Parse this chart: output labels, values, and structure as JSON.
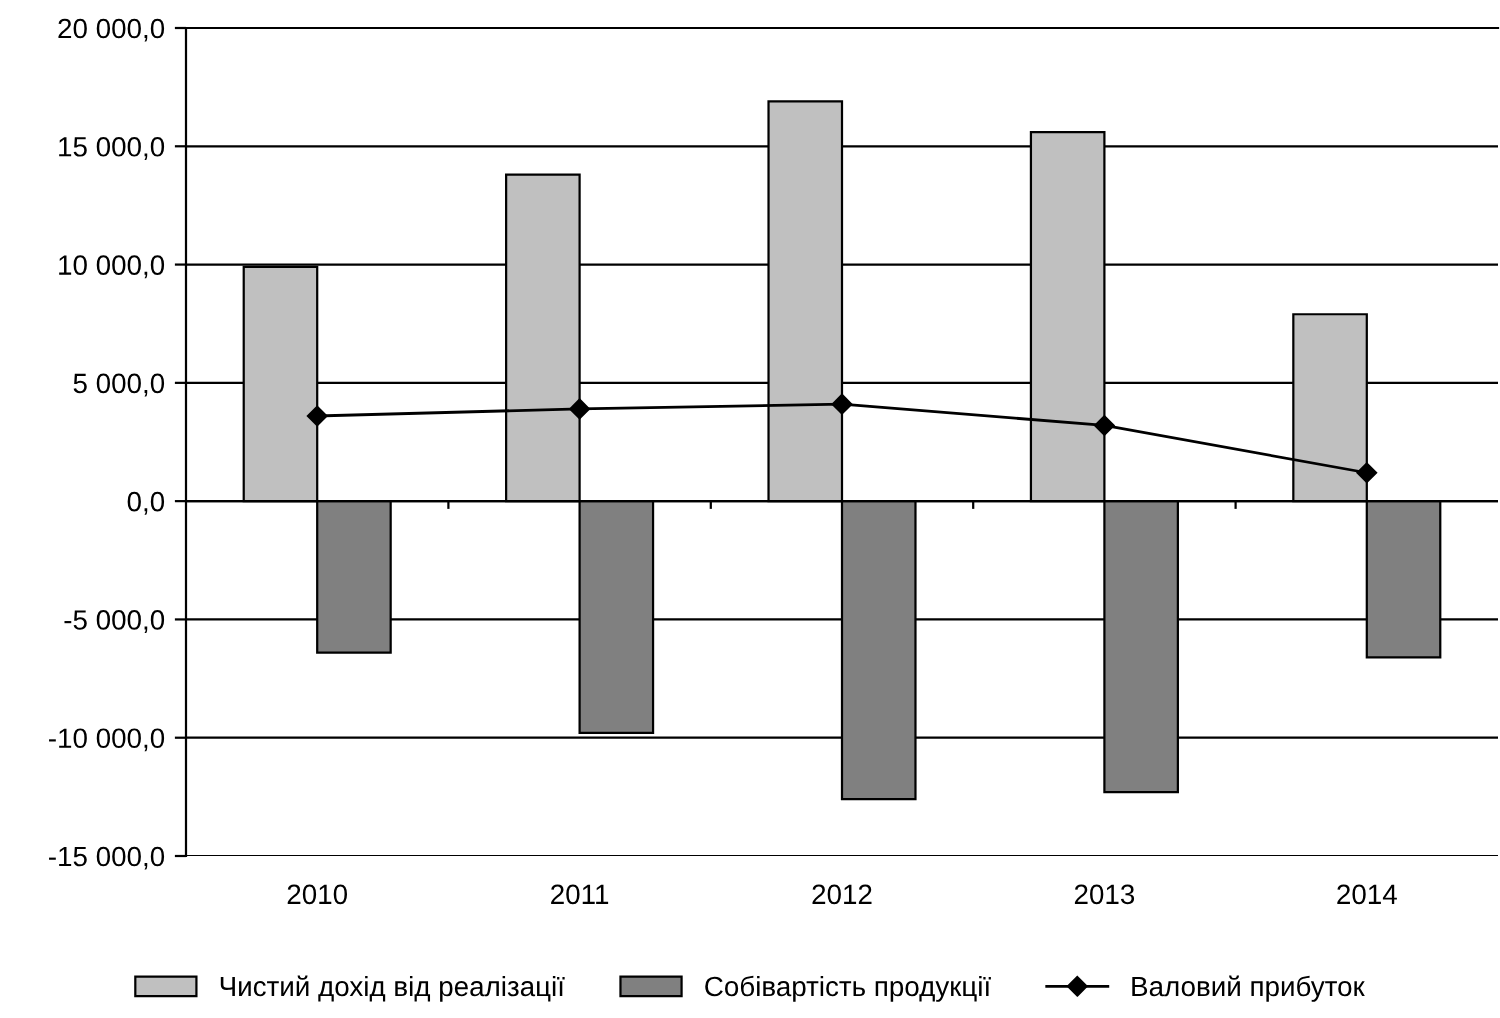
{
  "chart_data": {
    "type": "bar",
    "categories": [
      "2010",
      "2011",
      "2012",
      "2013",
      "2014"
    ],
    "series": [
      {
        "name": "Чистий дохід від реалізації",
        "color": "#c0c0c0",
        "values": [
          9900,
          13800,
          16900,
          15600,
          7900
        ]
      },
      {
        "name": "Собівартість продукції",
        "color": "#808080",
        "values": [
          -6400,
          -9800,
          -12600,
          -12300,
          -6600
        ]
      },
      {
        "name": "Валовий прибуток",
        "type": "line",
        "color": "#000000",
        "marker": "diamond",
        "values": [
          3600,
          3900,
          4100,
          3200,
          1200
        ]
      }
    ],
    "ylim": [
      -15000,
      20000
    ],
    "yticks": [
      {
        "value": -15000,
        "label": "-15 000,0"
      },
      {
        "value": -10000,
        "label": "-10 000,0"
      },
      {
        "value": -5000,
        "label": "-5 000,0"
      },
      {
        "value": 0,
        "label": "0,0"
      },
      {
        "value": 5000,
        "label": "5 000,0"
      },
      {
        "value": 10000,
        "label": "10 000,0"
      },
      {
        "value": 15000,
        "label": "15 000,0"
      },
      {
        "value": 20000,
        "label": "20 000,0"
      }
    ],
    "grid": "y",
    "legend": "bottom"
  }
}
